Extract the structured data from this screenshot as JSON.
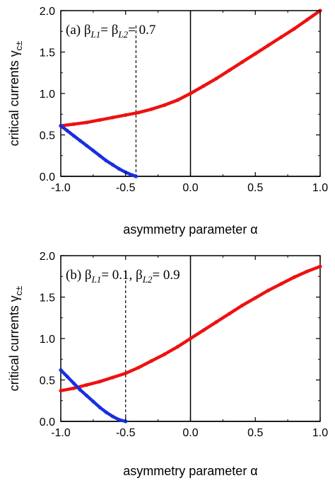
{
  "colors": {
    "red": "#ee1111",
    "blue": "#1a2fdd",
    "black": "#000000"
  },
  "chart_data": [
    {
      "type": "line",
      "panel_label": "(a)",
      "annotation": {
        "b1": "β",
        "s1": "L1",
        "eq1": "= ",
        "b2": "β",
        "s2": "L2",
        "eq2": "= 0.7"
      },
      "xlabel": "asymmetry parameter α",
      "ylabel": "critical currents γ",
      "ylabel_sub": "c±",
      "xlim": [
        -1.0,
        1.0
      ],
      "ylim": [
        0.0,
        2.0
      ],
      "xticks": [
        "-1.0",
        "-0.5",
        "0.0",
        "0.5",
        "1.0"
      ],
      "yticks": [
        "0.0",
        "0.5",
        "1.0",
        "1.5",
        "2.0"
      ],
      "vlines": [
        {
          "x": -0.42,
          "style": "dashed"
        },
        {
          "x": 0.0,
          "style": "solid"
        }
      ],
      "hlines": [
        {
          "y": 0.0,
          "style": "solid"
        }
      ],
      "series": [
        {
          "color": "red",
          "x": [
            -1.0,
            -0.9,
            -0.8,
            -0.7,
            -0.6,
            -0.5,
            -0.4,
            -0.3,
            -0.2,
            -0.1,
            0.0,
            0.1,
            0.2,
            0.3,
            0.4,
            0.5,
            0.6,
            0.7,
            0.8,
            0.9,
            1.0
          ],
          "y": [
            0.61,
            0.63,
            0.65,
            0.68,
            0.71,
            0.74,
            0.77,
            0.81,
            0.86,
            0.92,
            1.0,
            1.09,
            1.18,
            1.28,
            1.38,
            1.48,
            1.58,
            1.68,
            1.78,
            1.89,
            2.0
          ]
        },
        {
          "color": "blue",
          "x": [
            -1.0,
            -0.95,
            -0.9,
            -0.85,
            -0.8,
            -0.75,
            -0.7,
            -0.65,
            -0.6,
            -0.55,
            -0.5,
            -0.45,
            -0.42
          ],
          "y": [
            0.61,
            0.55,
            0.49,
            0.43,
            0.37,
            0.31,
            0.25,
            0.19,
            0.14,
            0.09,
            0.05,
            0.015,
            0.0
          ]
        }
      ]
    },
    {
      "type": "line",
      "panel_label": "(b)",
      "annotation": {
        "b1": "β",
        "s1": "L1",
        "eq1": "= 0.1, ",
        "b2": "β",
        "s2": "L2",
        "eq2": "= 0.9"
      },
      "xlabel": "asymmetry parameter α",
      "ylabel": "critical currents γ",
      "ylabel_sub": "c±",
      "xlim": [
        -1.0,
        1.0
      ],
      "ylim": [
        0.0,
        2.0
      ],
      "xticks": [
        "-1.0",
        "-0.5",
        "0.0",
        "0.5",
        "1.0"
      ],
      "yticks": [
        "0.0",
        "0.5",
        "1.0",
        "1.5",
        "2.0"
      ],
      "vlines": [
        {
          "x": -0.5,
          "style": "dashed"
        },
        {
          "x": 0.0,
          "style": "solid"
        }
      ],
      "hlines": [
        {
          "y": 0.0,
          "style": "solid"
        }
      ],
      "series": [
        {
          "color": "red",
          "x": [
            -1.0,
            -0.9,
            -0.8,
            -0.7,
            -0.6,
            -0.5,
            -0.4,
            -0.3,
            -0.2,
            -0.1,
            0.0,
            0.1,
            0.2,
            0.3,
            0.4,
            0.5,
            0.6,
            0.7,
            0.8,
            0.9,
            1.0
          ],
          "y": [
            0.37,
            0.4,
            0.44,
            0.48,
            0.53,
            0.58,
            0.65,
            0.73,
            0.81,
            0.9,
            1.0,
            1.1,
            1.2,
            1.3,
            1.4,
            1.49,
            1.58,
            1.66,
            1.74,
            1.81,
            1.87
          ]
        },
        {
          "color": "blue",
          "x": [
            -1.0,
            -0.95,
            -0.9,
            -0.85,
            -0.8,
            -0.75,
            -0.7,
            -0.65,
            -0.6,
            -0.55,
            -0.5
          ],
          "y": [
            0.62,
            0.54,
            0.46,
            0.38,
            0.31,
            0.24,
            0.17,
            0.11,
            0.06,
            0.02,
            0.0
          ]
        }
      ]
    }
  ]
}
